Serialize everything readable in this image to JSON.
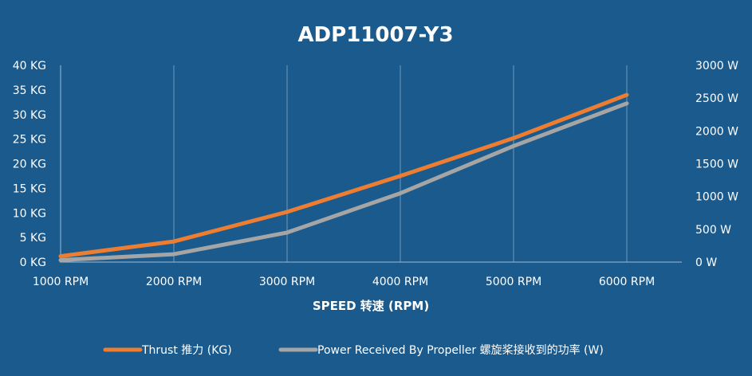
{
  "chart_data": {
    "type": "line",
    "title": "ADP11007-Y3",
    "xlabel": "SPEED 转速 (RPM)",
    "x": [
      1000,
      2000,
      3000,
      4000,
      5000,
      6000
    ],
    "x_tick_labels": [
      "1000 RPM",
      "2000 RPM",
      "3000 RPM",
      "4000 RPM",
      "5000 RPM",
      "6000 RPM"
    ],
    "y_left_ticks": [
      "0 KG",
      "5 KG",
      "10 KG",
      "15 KG",
      "20 KG",
      "25 KG",
      "30 KG",
      "35 KG",
      "40 KG"
    ],
    "y_left_range": [
      0,
      40
    ],
    "y_right_ticks": [
      "0 W",
      "500 W",
      "1000 W",
      "1500 W",
      "2000 W",
      "2500 W",
      "3000 W"
    ],
    "y_right_range": [
      0,
      3000
    ],
    "grid": "vertical",
    "legend_position": "bottom",
    "series": [
      {
        "name": "Thrust 推力 (KG)",
        "axis": "left",
        "color": "#ed7d31",
        "values": [
          1.2,
          4.2,
          10.2,
          17.5,
          25.2,
          34.0
        ]
      },
      {
        "name": "Power Received By Propeller 螺旋桨接收到的功率 (W)",
        "axis": "right",
        "color": "#a5a5a5",
        "values": [
          30,
          120,
          450,
          1050,
          1770,
          2420
        ]
      }
    ]
  }
}
